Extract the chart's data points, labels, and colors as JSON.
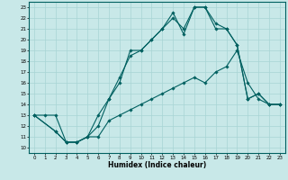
{
  "xlabel": "Humidex (Indice chaleur)",
  "bg_color": "#c8e8e8",
  "line_color": "#006060",
  "grid_color": "#a8d4d4",
  "xlim": [
    -0.5,
    23.5
  ],
  "ylim": [
    9.5,
    23.5
  ],
  "yticks": [
    10,
    11,
    12,
    13,
    14,
    15,
    16,
    17,
    18,
    19,
    20,
    21,
    22,
    23
  ],
  "xticks": [
    0,
    1,
    2,
    3,
    4,
    5,
    6,
    7,
    8,
    9,
    10,
    11,
    12,
    13,
    14,
    15,
    16,
    17,
    18,
    19,
    20,
    21,
    22,
    23
  ],
  "line1_x": [
    0,
    1,
    2,
    3,
    4,
    5,
    6,
    7,
    8,
    9,
    10,
    11,
    12,
    13,
    14,
    15,
    16,
    17,
    18,
    19,
    20,
    21,
    22,
    23
  ],
  "line1_y": [
    13,
    13,
    13,
    10.5,
    10.5,
    11,
    11,
    12.5,
    13,
    13.5,
    14,
    14.5,
    15,
    15.5,
    16,
    16.5,
    16,
    17,
    17.5,
    19,
    16,
    14.5,
    14,
    14
  ],
  "line2_x": [
    0,
    2,
    3,
    4,
    5,
    6,
    7,
    8,
    9,
    10,
    11,
    12,
    13,
    14,
    15,
    16,
    17,
    18,
    19,
    20,
    21,
    22,
    23
  ],
  "line2_y": [
    13,
    11.5,
    10.5,
    10.5,
    11,
    13,
    14.5,
    16,
    19,
    19,
    20,
    21,
    22.5,
    20.5,
    23,
    23,
    21.5,
    21,
    19.5,
    14.5,
    15,
    14,
    14
  ],
  "line3_x": [
    0,
    2,
    3,
    4,
    5,
    6,
    7,
    8,
    9,
    10,
    11,
    12,
    13,
    14,
    15,
    16,
    17,
    18,
    19,
    20,
    21,
    22,
    23
  ],
  "line3_y": [
    13,
    11.5,
    10.5,
    10.5,
    11,
    12,
    14.5,
    16.5,
    18.5,
    19,
    20,
    21,
    22,
    21,
    23,
    23,
    21,
    21,
    19.5,
    14.5,
    15,
    14,
    14
  ]
}
